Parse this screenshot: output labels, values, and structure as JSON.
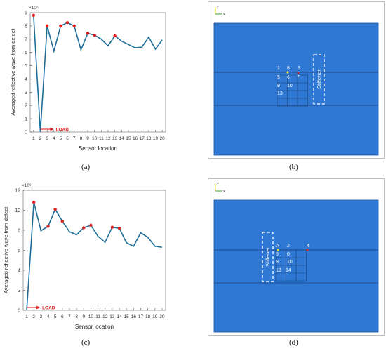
{
  "chart_data": [
    {
      "panel": "a",
      "type": "line",
      "ylabel": "Averaged reflective wave from defect",
      "xlabel": "Sensor location",
      "exponent_label": "×10⁶",
      "x": [
        1,
        2,
        3,
        4,
        5,
        6,
        7,
        8,
        9,
        10,
        11,
        12,
        13,
        14,
        15,
        16,
        17,
        18,
        19,
        20
      ],
      "categories": [
        "1",
        "2",
        "3",
        "4",
        "5",
        "6",
        "7",
        "8",
        "9",
        "10",
        "11",
        "12",
        "13",
        "14",
        "15",
        "16",
        "17",
        "18",
        "19",
        "20"
      ],
      "values": [
        8.8,
        0.0,
        8.0,
        6.1,
        8.0,
        8.25,
        8.0,
        6.2,
        7.45,
        7.3,
        7.0,
        6.5,
        7.25,
        6.85,
        6.6,
        6.35,
        6.4,
        7.15,
        6.25,
        6.95
      ],
      "highlighted_points": [
        1,
        3,
        5,
        6,
        7,
        9,
        10,
        13
      ],
      "ylim": [
        0,
        9
      ],
      "yticks": [
        "0",
        "1",
        "2",
        "3",
        "4",
        "5",
        "6",
        "7",
        "8",
        "9"
      ],
      "load_sensor": 2,
      "load_label": "LOAD",
      "series_color": "#1f6e99",
      "marker_color": "#e02020"
    },
    {
      "panel": "c",
      "type": "line",
      "ylabel": "Averaged reflective wave from defect",
      "xlabel": "Sensor location",
      "exponent_label": "×10⁶",
      "x": [
        1,
        2,
        3,
        4,
        5,
        6,
        7,
        8,
        9,
        10,
        11,
        12,
        13,
        14,
        15,
        16,
        17,
        18,
        19,
        20
      ],
      "categories": [
        "1",
        "2",
        "3",
        "4",
        "5",
        "6",
        "7",
        "8",
        "9",
        "10",
        "11",
        "12",
        "13",
        "14",
        "15",
        "16",
        "17",
        "18",
        "19",
        "20"
      ],
      "values": [
        0.0,
        10.8,
        7.95,
        8.4,
        10.1,
        8.9,
        7.85,
        7.55,
        8.25,
        8.5,
        7.4,
        6.8,
        8.3,
        8.2,
        6.75,
        6.4,
        7.75,
        7.3,
        6.4,
        6.3
      ],
      "highlighted_points": [
        2,
        4,
        5,
        6,
        9,
        10,
        13,
        14
      ],
      "ylim": [
        0,
        12
      ],
      "yticks": [
        "0",
        "2",
        "4",
        "6",
        "8",
        "10",
        "12"
      ],
      "load_sensor": 1,
      "load_label": "LOAD",
      "series_color": "#1f6e99",
      "marker_color": "#e02020"
    }
  ],
  "captions": {
    "a": "(a)",
    "b": "(b)",
    "c": "(c)",
    "d": "(d)"
  },
  "model_b": {
    "stiffener_label": "Stiffener",
    "grid_labels": [
      "1",
      "8",
      "3",
      "5",
      "6",
      "7",
      "9",
      "10",
      "13"
    ],
    "axis_y": "y",
    "axis_x": "x",
    "plate_color": "#2f78d4"
  },
  "model_d": {
    "stiffener_label": "Stiffener",
    "grid_labels": [
      "A",
      "2",
      "4",
      "5",
      "6",
      "9",
      "10",
      "13",
      "14"
    ],
    "axis_y": "y",
    "axis_x": "x",
    "plate_color": "#2f78d4"
  }
}
